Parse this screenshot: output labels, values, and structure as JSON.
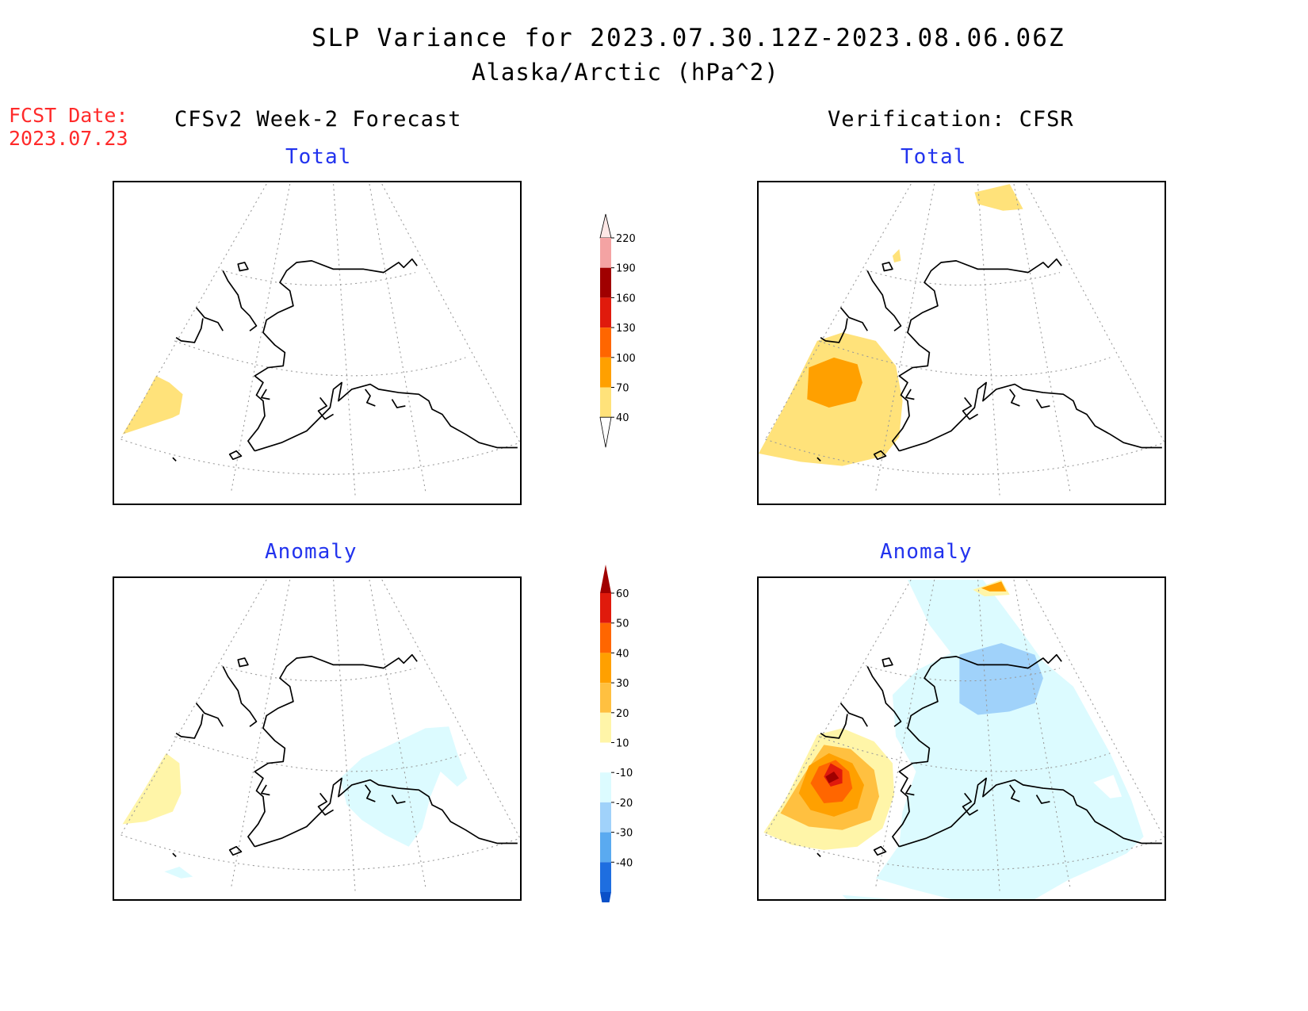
{
  "header": {
    "title": "SLP Variance for 2023.07.30.12Z-2023.08.06.06Z",
    "subtitle": "Alaska/Arctic (hPa^2)"
  },
  "fcst": {
    "label": "FCST Date:",
    "date": "2023.07.23"
  },
  "columns": {
    "left": "CFSv2 Week-2 Forecast",
    "right": "Verification: CFSR"
  },
  "panels": {
    "fc_total": "Total",
    "ver_total": "Total",
    "fc_anom": "Anomaly",
    "ver_anom": "Anomaly"
  },
  "colorbars": {
    "total": {
      "labels": [
        "220",
        "190",
        "160",
        "130",
        "100",
        "70",
        "40"
      ],
      "colors": [
        "#fde8e6",
        "#f4a3a3",
        "#a00000",
        "#e01a0c",
        "#ff6600",
        "#ffa000",
        "#ffe27a"
      ]
    },
    "anomaly": {
      "labels": [
        "60",
        "50",
        "40",
        "30",
        "20",
        "10",
        "-10",
        "-20",
        "-30",
        "-40"
      ],
      "colors": [
        "#a00000",
        "#e01a0c",
        "#ff6600",
        "#ffa000",
        "#ffc040",
        "#fff5a8",
        "#ffffff",
        "#dcfbff",
        "#a0d2fa",
        "#5aaaf0",
        "#1e6ee0",
        "#0a50c8"
      ]
    }
  }
}
